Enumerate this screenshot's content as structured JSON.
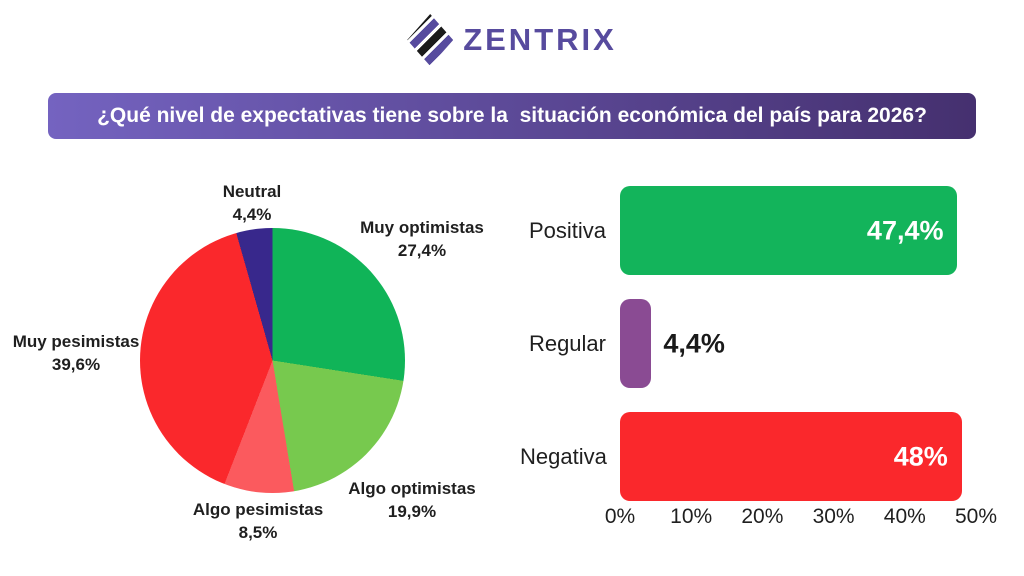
{
  "header": {
    "logo_text": "ZENTRIX",
    "brand_purple": "#574b9e",
    "brand_black": "#1b1b1b"
  },
  "banner": {
    "question": "¿Qué nivel de expectativas tiene sobre la  situación económica del país para 2026?",
    "gradient_left": "#7463c0",
    "gradient_right": "#45306f",
    "text_color": "#ffffff"
  },
  "chart_data": [
    {
      "type": "pie",
      "labels": [
        "Muy optimistas",
        "Algo optimistas",
        "Algo pesimistas",
        "Muy pesimistas",
        "Neutral"
      ],
      "values": [
        27.4,
        19.9,
        8.5,
        39.6,
        4.4
      ],
      "display_values": [
        "27,4%",
        "19,9%",
        "8,5%",
        "39,6%",
        "4,4%"
      ],
      "colors": [
        "#10b458",
        "#77c94e",
        "#fb5a5e",
        "#fa282c",
        "#38288c"
      ],
      "start_angle_deg": 0,
      "direction": "clockwise",
      "legend_position": "outside-labels"
    },
    {
      "type": "bar",
      "orientation": "horizontal",
      "categories": [
        "Positiva",
        "Regular",
        "Negativa"
      ],
      "values": [
        47.4,
        4.4,
        48
      ],
      "display_values": [
        "47,4%",
        "4,4%",
        "48%"
      ],
      "colors": [
        "#13b45b",
        "#8a4b93",
        "#fa282c"
      ],
      "value_label_position": [
        "inside",
        "outside",
        "inside"
      ],
      "xlim": [
        0,
        50
      ],
      "x_ticks": [
        "0%",
        "10%",
        "20%",
        "30%",
        "40%",
        "50%"
      ],
      "grid": false,
      "legend_position": "none"
    }
  ]
}
